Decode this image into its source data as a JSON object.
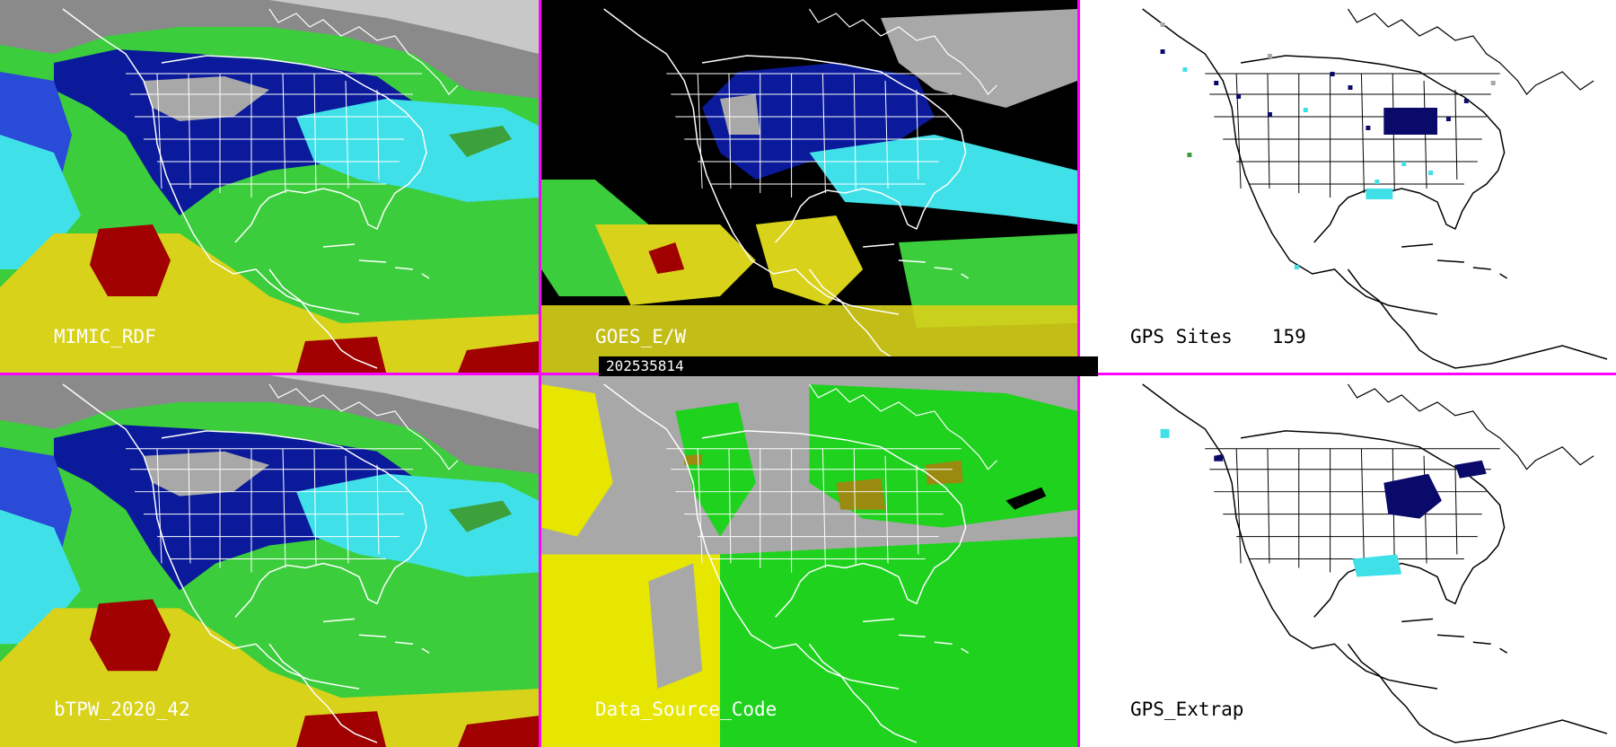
{
  "panels": [
    {
      "label": "MIMIC_RDF"
    },
    {
      "label": "GOES_E/W"
    },
    {
      "label": "GPS Sites",
      "count": "159"
    },
    {
      "label": "bTPW_2020_42"
    },
    {
      "label": "Data_Source_Code"
    },
    {
      "label": "GPS_Extrap"
    }
  ],
  "timestamp": "202535814",
  "colors": {
    "separator": "#ff00ff",
    "gray": "#a8a8a8",
    "deep_blue": "#0a1a9a",
    "blue": "#2a4ad8",
    "cyan": "#40e0e8",
    "green": "#3ccd3c",
    "yellow": "#d8d21a",
    "red": "#a00000",
    "navy": "#0a0a6a",
    "olive": "#9a8a10",
    "bright_green": "#1ed21e",
    "lemon": "#e6e600"
  }
}
